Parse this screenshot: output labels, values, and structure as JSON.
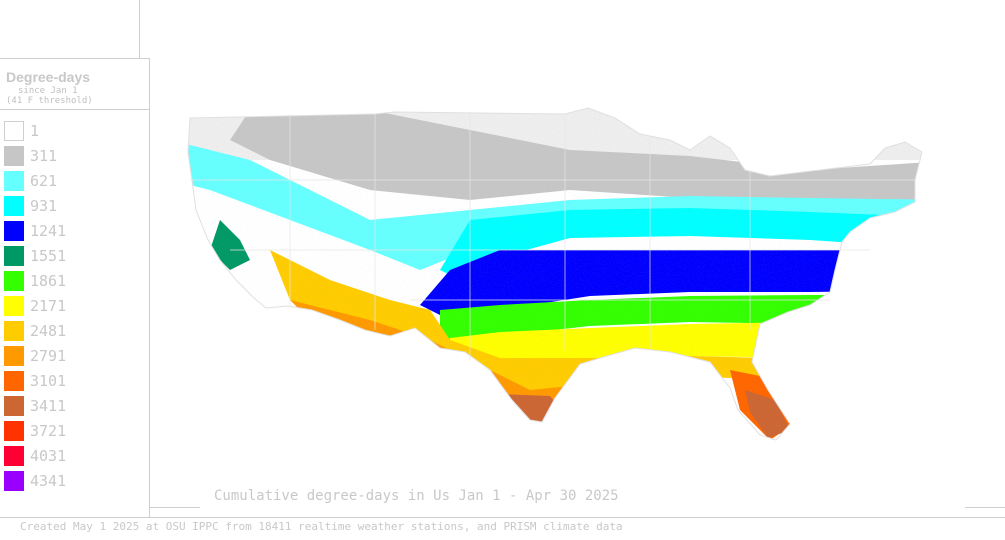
{
  "legend": {
    "title": "Degree-days",
    "subtitle_line1": "since Jan 1",
    "subtitle_line2": "(41 F threshold)",
    "items": [
      {
        "label": "1",
        "color": "#ffffff"
      },
      {
        "label": "311",
        "color": "#c6c6c6"
      },
      {
        "label": "621",
        "color": "#66ffff"
      },
      {
        "label": "931",
        "color": "#00ffff"
      },
      {
        "label": "1241",
        "color": "#0000ff"
      },
      {
        "label": "1551",
        "color": "#009966"
      },
      {
        "label": "1861",
        "color": "#33ff00"
      },
      {
        "label": "2171",
        "color": "#ffff00"
      },
      {
        "label": "2481",
        "color": "#ffcc00"
      },
      {
        "label": "2791",
        "color": "#ff9900"
      },
      {
        "label": "3101",
        "color": "#ff6600"
      },
      {
        "label": "3411",
        "color": "#cc6633"
      },
      {
        "label": "3721",
        "color": "#ff3300"
      },
      {
        "label": "4031",
        "color": "#ff0033"
      },
      {
        "label": "4341",
        "color": "#9900ff"
      }
    ]
  },
  "map": {
    "caption": "Cumulative degree-days in Us  Jan 1 - Apr 30 2025"
  },
  "footer": {
    "text": "Created May 1 2025 at OSU IPPC from 18411 realtime weather stations, and PRISM climate data"
  }
}
